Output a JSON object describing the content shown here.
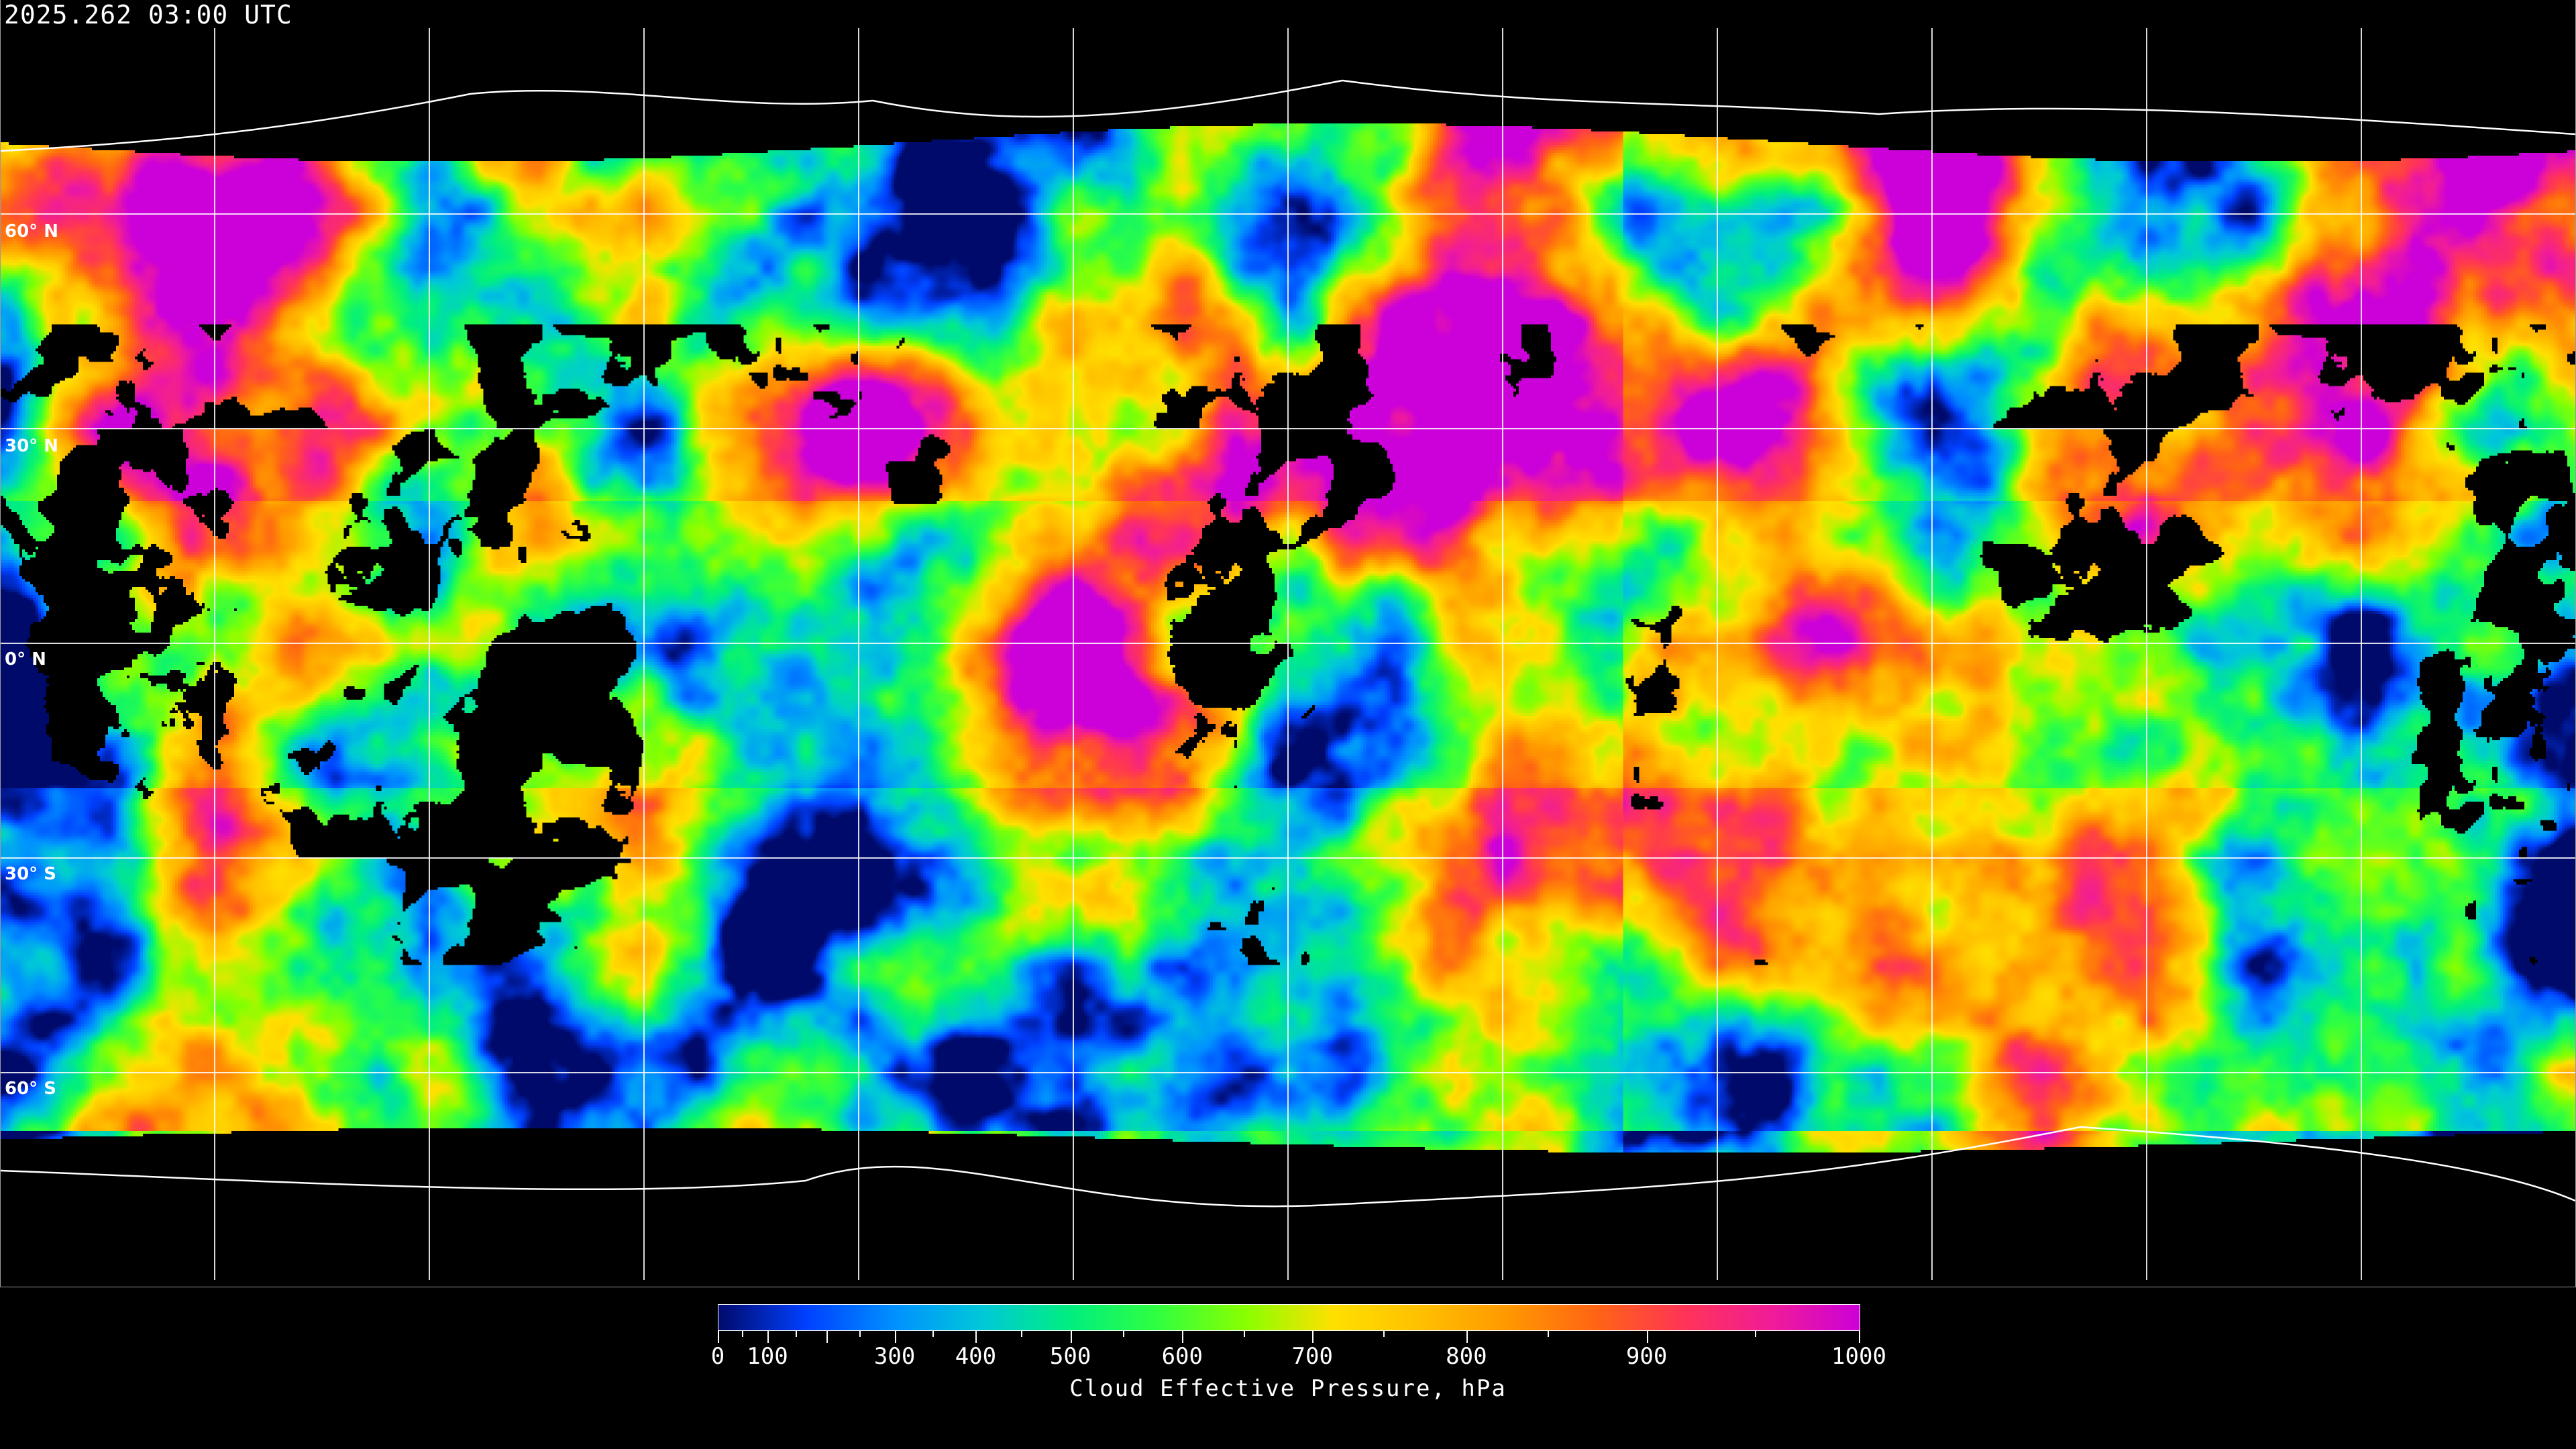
{
  "header": {
    "timestamp": "2025.262 03:00 UTC"
  },
  "map": {
    "projection": "equirectangular",
    "graticule_spacing_deg": 30,
    "lat_labels": [
      "60° N",
      "30° N",
      "0° N",
      "30° S",
      "60° S"
    ],
    "background_color": "#000000",
    "gridline_color": "#ffffff"
  },
  "colorbar": {
    "title": "Cloud Effective Pressure, hPa",
    "min": 0,
    "max": 1000,
    "tick_labels": [
      "0",
      "100",
      "300",
      "400",
      "500",
      "600",
      "700",
      "800",
      "900",
      "1000"
    ],
    "colormap": [
      "#000a6b",
      "#0040ff",
      "#0090ff",
      "#00c8d8",
      "#00ee80",
      "#30ff40",
      "#88ff00",
      "#ffe000",
      "#ffc000",
      "#ff9800",
      "#ff6414",
      "#ff3456",
      "#f01c98",
      "#cc00d8"
    ]
  }
}
